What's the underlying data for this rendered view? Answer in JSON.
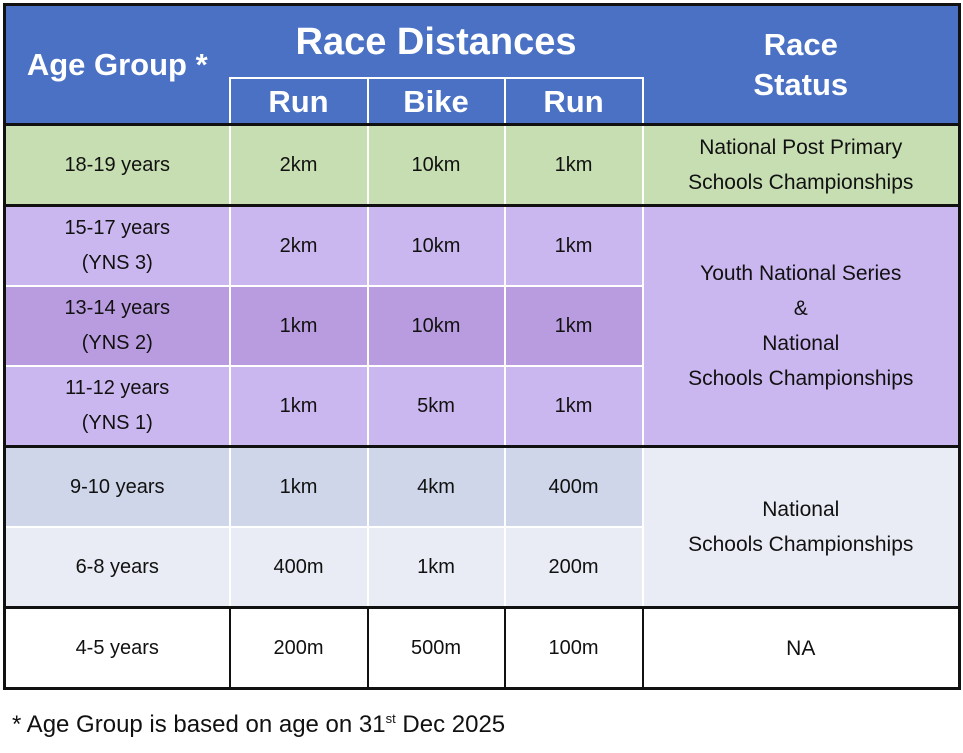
{
  "header": {
    "age_group": "Age Group *",
    "race_distances": "Race Distances",
    "legs": [
      "Run",
      "Bike",
      "Run"
    ],
    "race_status": [
      "Race",
      "Status"
    ]
  },
  "groups": [
    {
      "status": [
        "National Post Primary",
        "Schools Championships"
      ],
      "rows": [
        {
          "age": [
            "18-19 years"
          ],
          "distances": [
            "2km",
            "10km",
            "1km"
          ]
        }
      ]
    },
    {
      "status": [
        "Youth National Series",
        "&",
        "National",
        "Schools Championships"
      ],
      "rows": [
        {
          "age": [
            "15-17 years",
            "(YNS 3)"
          ],
          "distances": [
            "2km",
            "10km",
            "1km"
          ]
        },
        {
          "age": [
            "13-14 years",
            "(YNS 2)"
          ],
          "distances": [
            "1km",
            "10km",
            "1km"
          ]
        },
        {
          "age": [
            "11-12 years",
            "(YNS 1)"
          ],
          "distances": [
            "1km",
            "5km",
            "1km"
          ]
        }
      ]
    },
    {
      "status": [
        "National",
        "Schools Championships"
      ],
      "rows": [
        {
          "age": [
            "9-10 years"
          ],
          "distances": [
            "1km",
            "4km",
            "400m"
          ]
        },
        {
          "age": [
            "6-8 years"
          ],
          "distances": [
            "400m",
            "1km",
            "200m"
          ]
        }
      ]
    },
    {
      "status": [
        "NA"
      ],
      "rows": [
        {
          "age": [
            "4-5 years"
          ],
          "distances": [
            "200m",
            "500m",
            "100m"
          ]
        }
      ]
    }
  ],
  "footnote": {
    "before": "* Age Group is based on age on 31",
    "superscript": "st",
    "after": " Dec 2025"
  }
}
